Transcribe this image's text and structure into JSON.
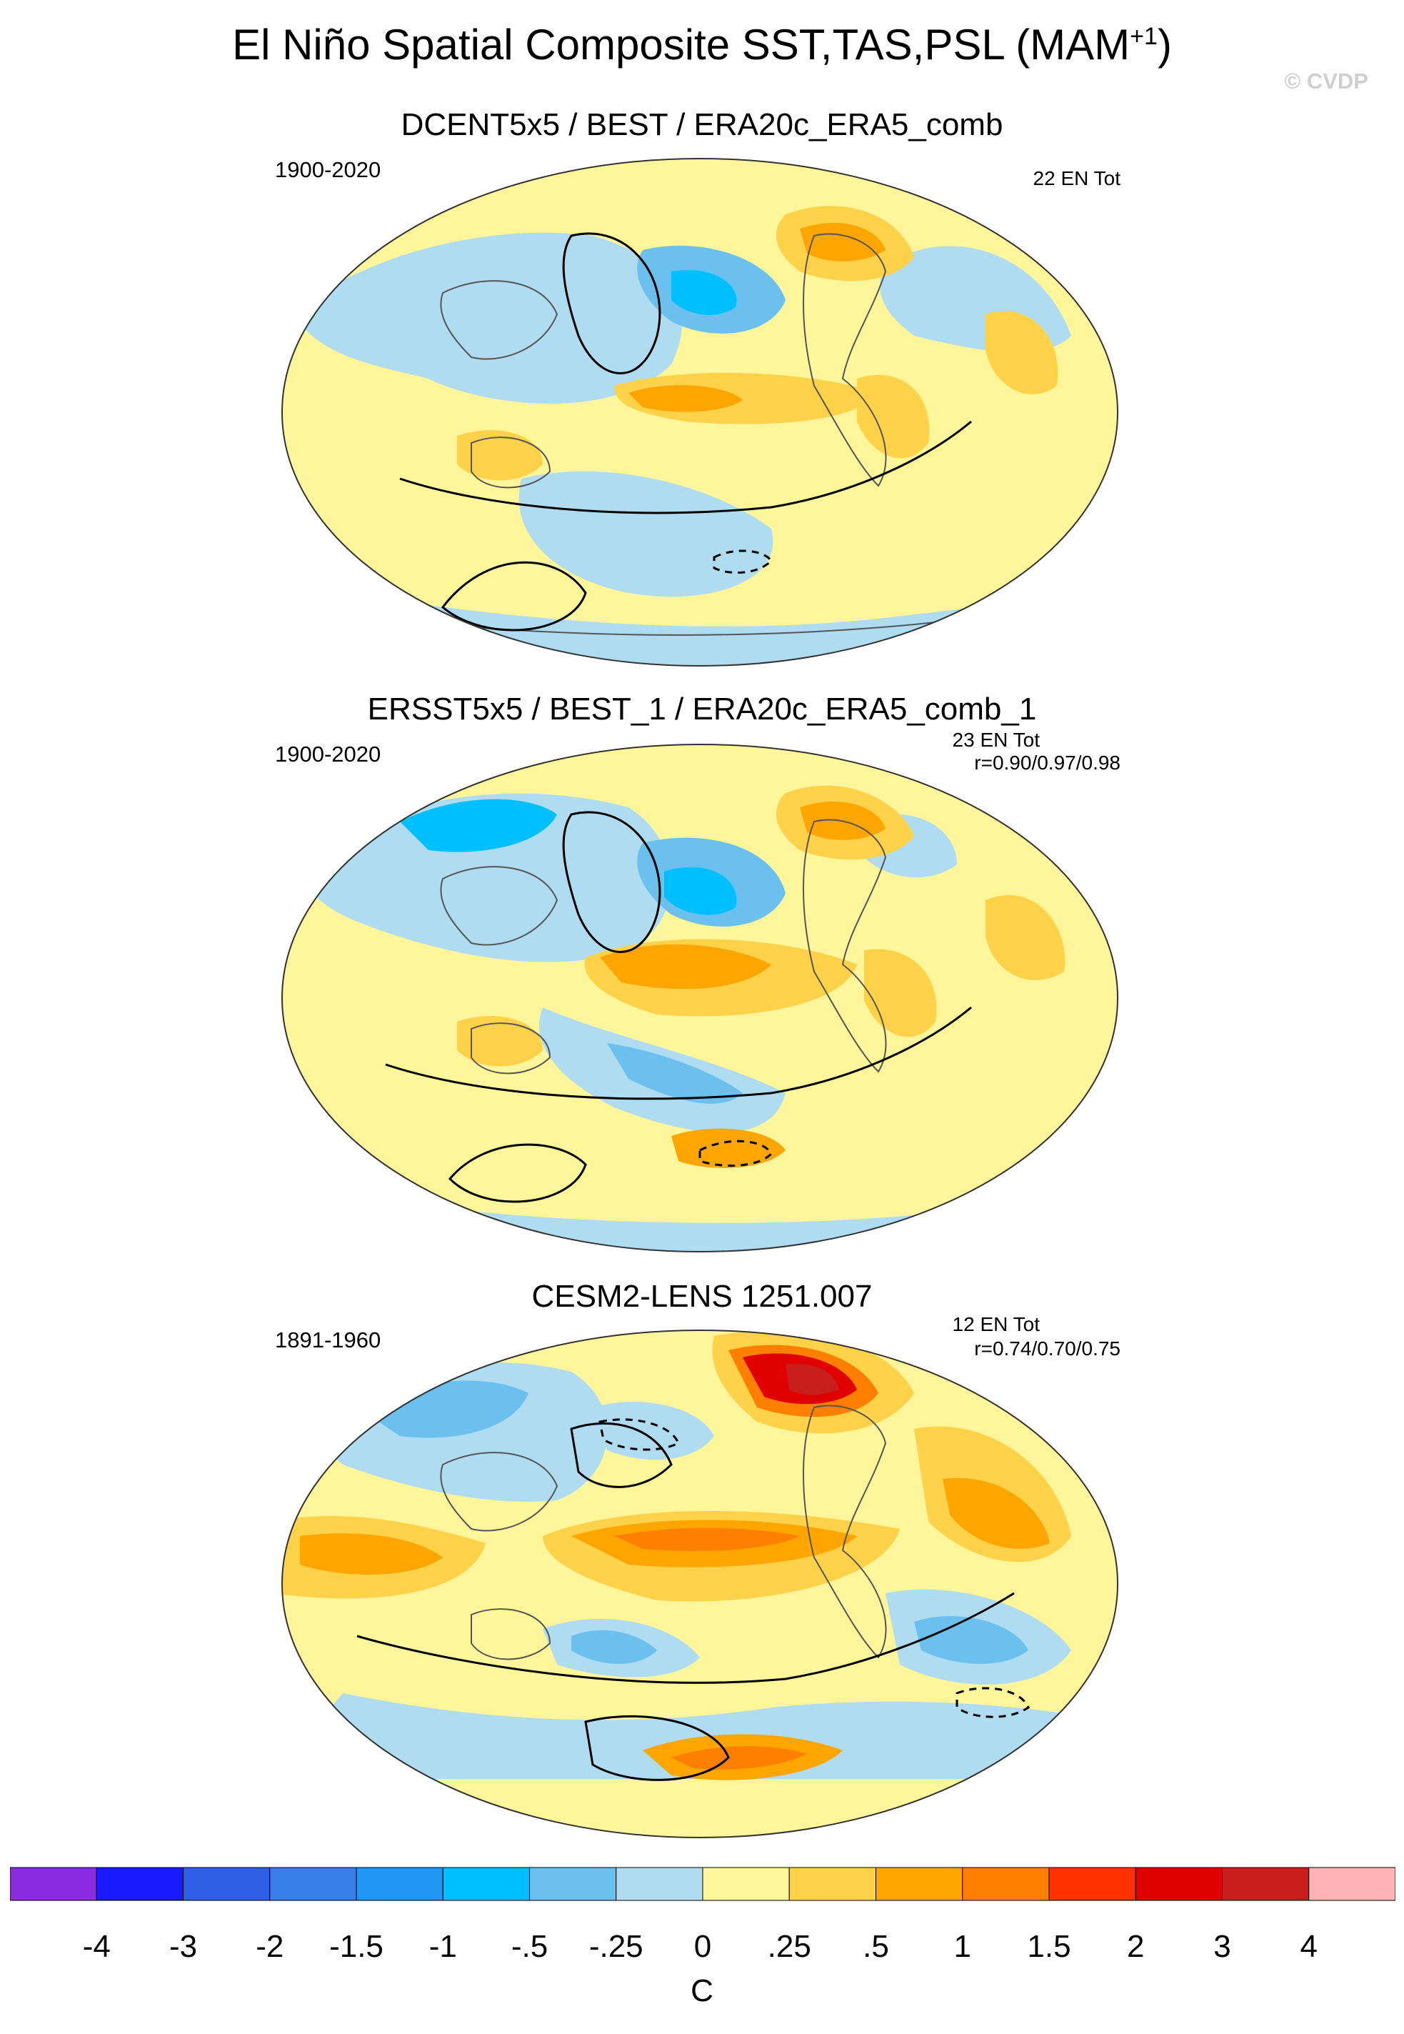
{
  "header": {
    "title": "El Niño Spatial Composite SST,TAS,PSL (MAM",
    "title_superscript": "+1",
    "title_suffix": ")",
    "watermark": "© CVDP"
  },
  "panels": [
    {
      "title": "DCENT5x5 / BEST / ERA20c_ERA5_comb",
      "years": "1900-2020",
      "count": "22 EN Tot",
      "correlation": ""
    },
    {
      "title": "ERSST5x5 / BEST_1 / ERA20c_ERA5_comb_1",
      "years": "1900-2020",
      "count": "23 EN Tot",
      "correlation": "r=0.90/0.97/0.98"
    },
    {
      "title": "CESM2-LENS 1251.007",
      "years": "1891-1960",
      "count": "12 EN Tot",
      "correlation": "r=0.74/0.70/0.75"
    }
  ],
  "colorbar": {
    "units": "C",
    "tick_labels": [
      "-4",
      "-3",
      "-2",
      "-1.5",
      "-1",
      "-.5",
      "-.25",
      "0",
      ".25",
      ".5",
      "1",
      "1.5",
      "2",
      "3",
      "4"
    ],
    "colors": [
      "#8b2be2",
      "#1a1aff",
      "#2f5fe6",
      "#3a7eea",
      "#2196f3",
      "#00bfff",
      "#6cc0ee",
      "#b0dcf2",
      "#fff59a",
      "#ffd24a",
      "#ffa500",
      "#ff7f00",
      "#ff3200",
      "#e00000",
      "#c81e1e",
      "#ffb3b3"
    ]
  },
  "legend_colors": {
    "ocean_neutral": "#b0dcf2",
    "warm_light": "#fff59a",
    "warm_medium": "#ffd24a",
    "warm_strong": "#ffa500",
    "warm_stronger": "#ff7f00",
    "hot": "#e00000",
    "cool_light": "#6cc0ee",
    "cool_medium": "#00bfff"
  }
}
